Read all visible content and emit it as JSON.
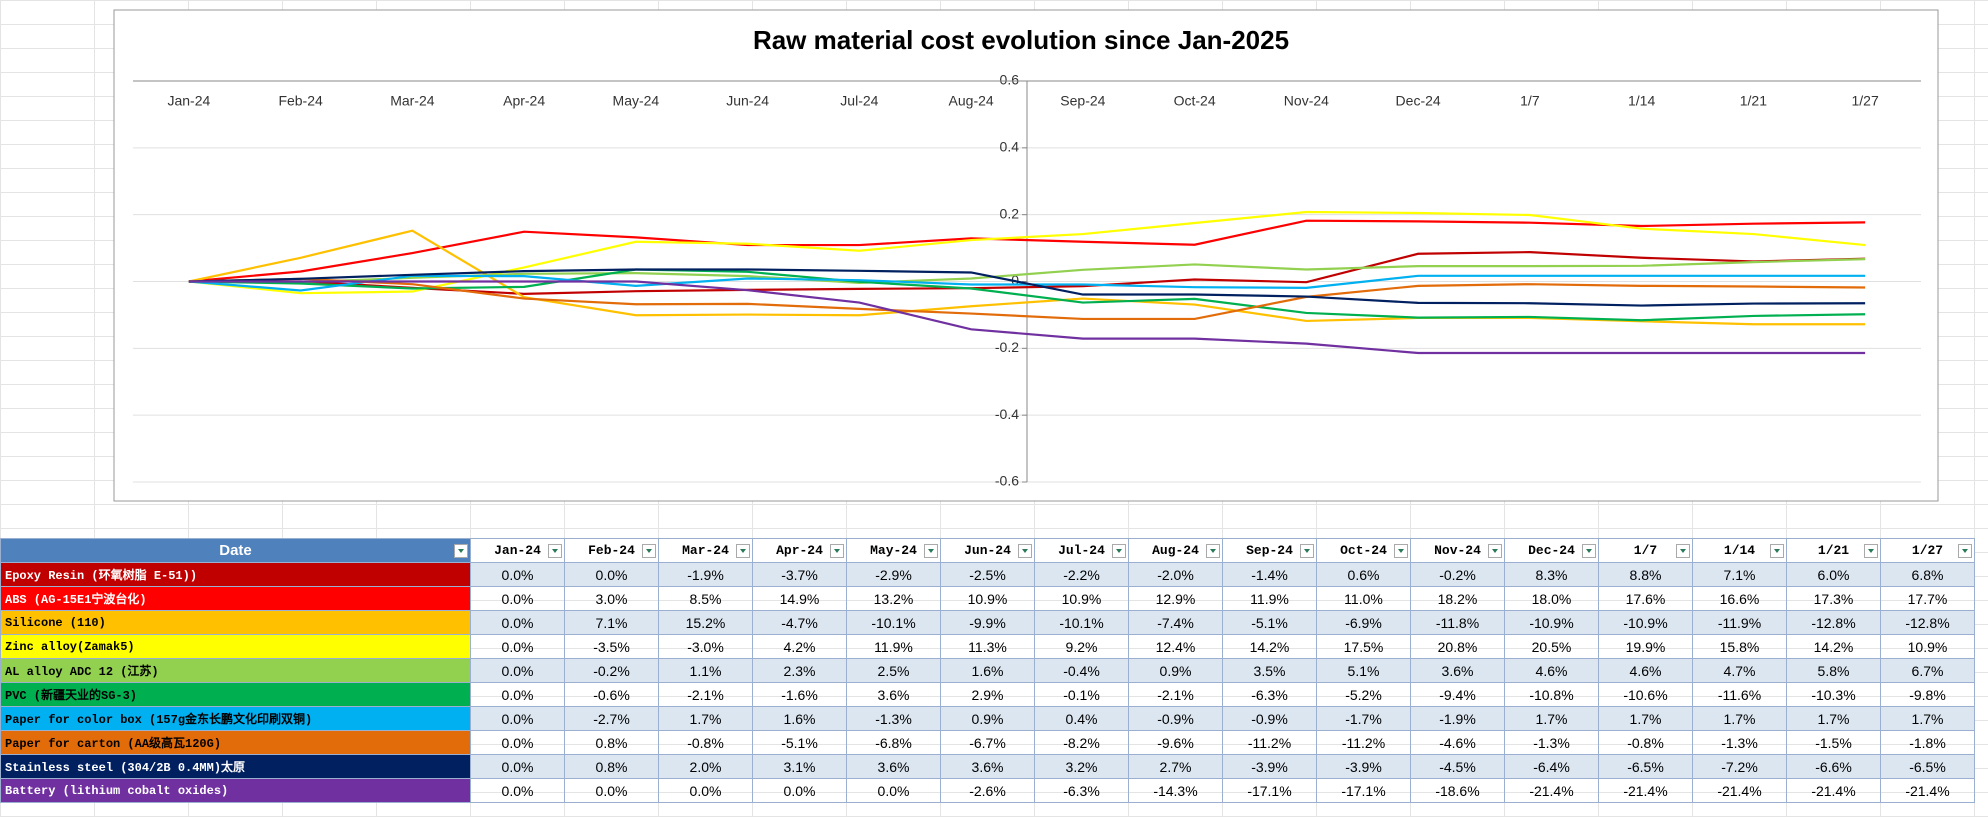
{
  "chart_data": {
    "type": "line",
    "title": "Raw material cost evolution since Jan-2025",
    "categories": [
      "Jan-24",
      "Feb-24",
      "Mar-24",
      "Apr-24",
      "May-24",
      "Jun-24",
      "Jul-24",
      "Aug-24",
      "Sep-24",
      "Oct-24",
      "Nov-24",
      "Dec-24",
      "1/7",
      "1/14",
      "1/21",
      "1/27"
    ],
    "ylim": [
      -0.6,
      0.6
    ],
    "yticks": [
      0.6,
      0.4,
      0.2,
      0,
      -0.2,
      -0.4,
      -0.6
    ],
    "grid": true,
    "series": [
      {
        "name": "Epoxy Resin (环氧树脂 E-51))",
        "color": "#c00000",
        "values": [
          0,
          0,
          -0.019,
          -0.037,
          -0.029,
          -0.025,
          -0.022,
          -0.02,
          -0.014,
          0.006,
          -0.002,
          0.083,
          0.088,
          0.071,
          0.06,
          0.068
        ],
        "value_labels": [
          "0.0%",
          "0.0%",
          "-1.9%",
          "-3.7%",
          "-2.9%",
          "-2.5%",
          "-2.2%",
          "-2.0%",
          "-1.4%",
          "0.6%",
          "-0.2%",
          "8.3%",
          "8.8%",
          "7.1%",
          "6.0%",
          "6.8%"
        ]
      },
      {
        "name": "ABS (AG-15E1宁波台化)",
        "color": "#ff0000",
        "values": [
          0,
          0.03,
          0.085,
          0.149,
          0.132,
          0.109,
          0.109,
          0.129,
          0.119,
          0.11,
          0.182,
          0.18,
          0.176,
          0.166,
          0.173,
          0.177
        ],
        "value_labels": [
          "0.0%",
          "3.0%",
          "8.5%",
          "14.9%",
          "13.2%",
          "10.9%",
          "10.9%",
          "12.9%",
          "11.9%",
          "11.0%",
          "18.2%",
          "18.0%",
          "17.6%",
          "16.6%",
          "17.3%",
          "17.7%"
        ]
      },
      {
        "name": "Silicone (110)",
        "color": "#ffc000",
        "values": [
          0,
          0.071,
          0.152,
          -0.047,
          -0.101,
          -0.099,
          -0.101,
          -0.074,
          -0.051,
          -0.069,
          -0.118,
          -0.109,
          -0.109,
          -0.119,
          -0.128,
          -0.128
        ],
        "value_labels": [
          "0.0%",
          "7.1%",
          "15.2%",
          "-4.7%",
          "-10.1%",
          "-9.9%",
          "-10.1%",
          "-7.4%",
          "-5.1%",
          "-6.9%",
          "-11.8%",
          "-10.9%",
          "-10.9%",
          "-11.9%",
          "-12.8%",
          "-12.8%"
        ]
      },
      {
        "name": "Zinc alloy(Zamak5)",
        "color": "#ffff00",
        "values": [
          0,
          -0.035,
          -0.03,
          0.042,
          0.119,
          0.113,
          0.092,
          0.124,
          0.142,
          0.175,
          0.208,
          0.205,
          0.199,
          0.158,
          0.142,
          0.109
        ],
        "value_labels": [
          "0.0%",
          "-3.5%",
          "-3.0%",
          "4.2%",
          "11.9%",
          "11.3%",
          "9.2%",
          "12.4%",
          "14.2%",
          "17.5%",
          "20.8%",
          "20.5%",
          "19.9%",
          "15.8%",
          "14.2%",
          "10.9%"
        ]
      },
      {
        "name": "AL alloy ADC 12 (江苏)",
        "color": "#92d050",
        "values": [
          0,
          -0.002,
          0.011,
          0.023,
          0.025,
          0.016,
          -0.004,
          0.009,
          0.035,
          0.051,
          0.036,
          0.046,
          0.046,
          0.047,
          0.058,
          0.067
        ],
        "value_labels": [
          "0.0%",
          "-0.2%",
          "1.1%",
          "2.3%",
          "2.5%",
          "1.6%",
          "-0.4%",
          "0.9%",
          "3.5%",
          "5.1%",
          "3.6%",
          "4.6%",
          "4.6%",
          "4.7%",
          "5.8%",
          "6.7%"
        ]
      },
      {
        "name": "PVC (新疆天业的SG-3)",
        "color": "#00b050",
        "values": [
          0,
          -0.006,
          -0.021,
          -0.016,
          0.036,
          0.029,
          -0.001,
          -0.021,
          -0.063,
          -0.052,
          -0.094,
          -0.108,
          -0.106,
          -0.116,
          -0.103,
          -0.098
        ],
        "value_labels": [
          "0.0%",
          "-0.6%",
          "-2.1%",
          "-1.6%",
          "3.6%",
          "2.9%",
          "-0.1%",
          "-2.1%",
          "-6.3%",
          "-5.2%",
          "-9.4%",
          "-10.8%",
          "-10.6%",
          "-11.6%",
          "-10.3%",
          "-9.8%"
        ]
      },
      {
        "name": "Paper for color box (157g金东长鹏文化印刷双铜)",
        "color": "#00b0f0",
        "values": [
          0,
          -0.027,
          0.017,
          0.016,
          -0.013,
          0.009,
          0.004,
          -0.009,
          -0.009,
          -0.017,
          -0.019,
          0.017,
          0.017,
          0.017,
          0.017,
          0.017
        ],
        "value_labels": [
          "0.0%",
          "-2.7%",
          "1.7%",
          "1.6%",
          "-1.3%",
          "0.9%",
          "0.4%",
          "-0.9%",
          "-0.9%",
          "-1.7%",
          "-1.9%",
          "1.7%",
          "1.7%",
          "1.7%",
          "1.7%",
          "1.7%"
        ]
      },
      {
        "name": "Paper for carton (AA级高瓦120G)",
        "color": "#e26b0a",
        "values": [
          0,
          0.008,
          -0.008,
          -0.051,
          -0.068,
          -0.067,
          -0.082,
          -0.096,
          -0.112,
          -0.112,
          -0.046,
          -0.013,
          -0.008,
          -0.013,
          -0.015,
          -0.018
        ],
        "value_labels": [
          "0.0%",
          "0.8%",
          "-0.8%",
          "-5.1%",
          "-6.8%",
          "-6.7%",
          "-8.2%",
          "-9.6%",
          "-11.2%",
          "-11.2%",
          "-4.6%",
          "-1.3%",
          "-0.8%",
          "-1.3%",
          "-1.5%",
          "-1.8%"
        ]
      },
      {
        "name": "Stainless steel (304/2B 0.4MM)太原",
        "color": "#002060",
        "values": [
          0,
          0.008,
          0.02,
          0.031,
          0.036,
          0.036,
          0.032,
          0.027,
          -0.039,
          -0.039,
          -0.045,
          -0.064,
          -0.065,
          -0.072,
          -0.066,
          -0.065
        ],
        "value_labels": [
          "0.0%",
          "0.8%",
          "2.0%",
          "3.1%",
          "3.6%",
          "3.6%",
          "3.2%",
          "2.7%",
          "-3.9%",
          "-3.9%",
          "-4.5%",
          "-6.4%",
          "-6.5%",
          "-7.2%",
          "-6.6%",
          "-6.5%"
        ]
      },
      {
        "name": "Battery (lithium cobalt oxides)",
        "color": "#7030a0",
        "values": [
          0,
          0,
          0,
          0,
          0,
          -0.026,
          -0.063,
          -0.143,
          -0.171,
          -0.171,
          -0.186,
          -0.214,
          -0.214,
          -0.214,
          -0.214,
          -0.214
        ],
        "value_labels": [
          "0.0%",
          "0.0%",
          "0.0%",
          "0.0%",
          "0.0%",
          "-2.6%",
          "-6.3%",
          "-14.3%",
          "-17.1%",
          "-17.1%",
          "-18.6%",
          "-21.4%",
          "-21.4%",
          "-21.4%",
          "-21.4%",
          "-21.4%"
        ]
      }
    ]
  },
  "table": {
    "header": "Date"
  }
}
